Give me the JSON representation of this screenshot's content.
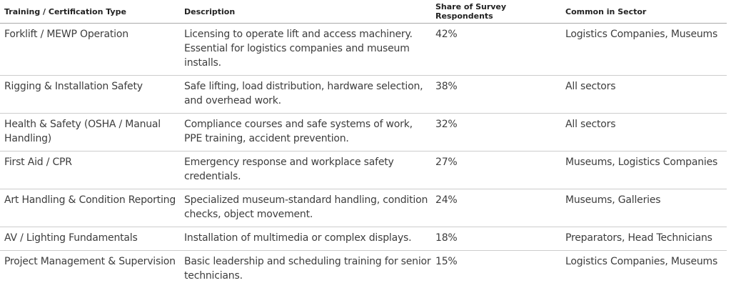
{
  "table": {
    "header": [
      "Training / Certification Type",
      "Description",
      "Share of Survey Respondents",
      "Common in Sector"
    ],
    "rows": [
      [
        "Forklift / MEWP Operation",
        "Licensing to operate lift and access machinery. Essential for logistics companies and museum installs.",
        "42%",
        "Logistics Companies, Museums"
      ],
      [
        "Rigging & Installation Safety",
        "Safe lifting, load distribution, hardware selection, and overhead work.",
        "38%",
        "All sectors"
      ],
      [
        "Health & Safety (OSHA / Manual Handling)",
        "Compliance courses and safe systems of work, PPE training, accident prevention.",
        "32%",
        "All sectors"
      ],
      [
        "First Aid / CPR",
        "Emergency response and workplace safety credentials.",
        "27%",
        "Museums, Logistics Companies"
      ],
      [
        "Art Handling & Condition Reporting",
        "Specialized museum-standard handling, condition checks, object movement.",
        "24%",
        "Museums, Galleries"
      ],
      [
        "AV / Lighting Fundamentals",
        "Installation of multimedia or complex displays.",
        "18%",
        "Preparators, Head Technicians"
      ],
      [
        "Project Management & Supervision",
        "Basic leadership and scheduling training for senior technicians.",
        "15%",
        "Logistics Companies, Museums"
      ]
    ]
  }
}
